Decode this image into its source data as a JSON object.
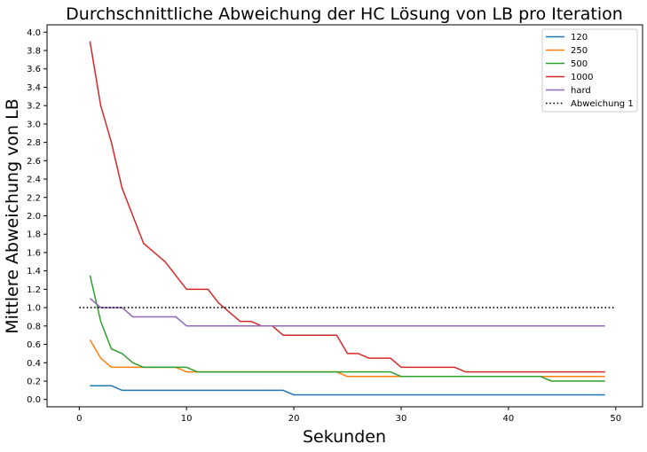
{
  "chart_data": {
    "type": "line",
    "title": "Durchschnittliche Abweichung der HC Lösung von LB pro Iteration",
    "xlabel": "Sekunden",
    "ylabel": "Mittlere Abweichung von LB",
    "xlim": [
      -3,
      52.5
    ],
    "ylim": [
      -0.08,
      4.08
    ],
    "xticks": [
      0,
      10,
      20,
      30,
      40,
      50
    ],
    "yticks": [
      0.0,
      0.2,
      0.4,
      0.6,
      0.8,
      1.0,
      1.2,
      1.4,
      1.6,
      1.8,
      2.0,
      2.2,
      2.4,
      2.6,
      2.8,
      3.0,
      3.2,
      3.4,
      3.6,
      3.8,
      4.0
    ],
    "grid": false,
    "legend_position": "top-right",
    "series": [
      {
        "name": "120",
        "color": "#1f77b4",
        "x": [
          1,
          2,
          3,
          4,
          19,
          20,
          49
        ],
        "y": [
          0.15,
          0.15,
          0.15,
          0.1,
          0.1,
          0.05,
          0.05
        ]
      },
      {
        "name": "250",
        "color": "#ff7f0e",
        "x": [
          1,
          2,
          3,
          9,
          10,
          11,
          24,
          25,
          29,
          30,
          49
        ],
        "y": [
          0.65,
          0.45,
          0.35,
          0.35,
          0.3,
          0.3,
          0.3,
          0.25,
          0.25,
          0.25,
          0.25
        ]
      },
      {
        "name": "500",
        "color": "#2ca02c",
        "x": [
          1,
          2,
          3,
          4,
          5,
          6,
          10,
          11,
          29,
          30,
          43,
          44,
          49
        ],
        "y": [
          1.35,
          0.85,
          0.55,
          0.5,
          0.4,
          0.35,
          0.35,
          0.3,
          0.3,
          0.25,
          0.25,
          0.2,
          0.2
        ]
      },
      {
        "name": "1000",
        "color": "#d62728",
        "x": [
          1,
          2,
          3,
          4,
          5,
          6,
          7,
          8,
          9,
          10,
          11,
          12,
          13,
          14,
          15,
          16,
          17,
          18,
          19,
          20,
          21,
          22,
          23,
          24,
          25,
          26,
          27,
          28,
          29,
          30,
          31,
          35,
          36,
          49
        ],
        "y": [
          3.9,
          3.2,
          2.8,
          2.3,
          2.0,
          1.7,
          1.6,
          1.5,
          1.35,
          1.2,
          1.2,
          1.2,
          1.05,
          0.95,
          0.85,
          0.85,
          0.8,
          0.8,
          0.7,
          0.7,
          0.7,
          0.7,
          0.7,
          0.7,
          0.5,
          0.5,
          0.45,
          0.45,
          0.45,
          0.35,
          0.35,
          0.35,
          0.3,
          0.3
        ]
      },
      {
        "name": "hard",
        "color": "#9467bd",
        "x": [
          1,
          2,
          3,
          4,
          5,
          6,
          9,
          10,
          49
        ],
        "y": [
          1.1,
          1.0,
          1.0,
          1.0,
          0.9,
          0.9,
          0.9,
          0.8,
          0.8
        ]
      },
      {
        "name": "Abweichung 1",
        "color": "#000000",
        "dashed": true,
        "x": [
          0,
          50
        ],
        "y": [
          1.0,
          1.0
        ]
      }
    ]
  }
}
